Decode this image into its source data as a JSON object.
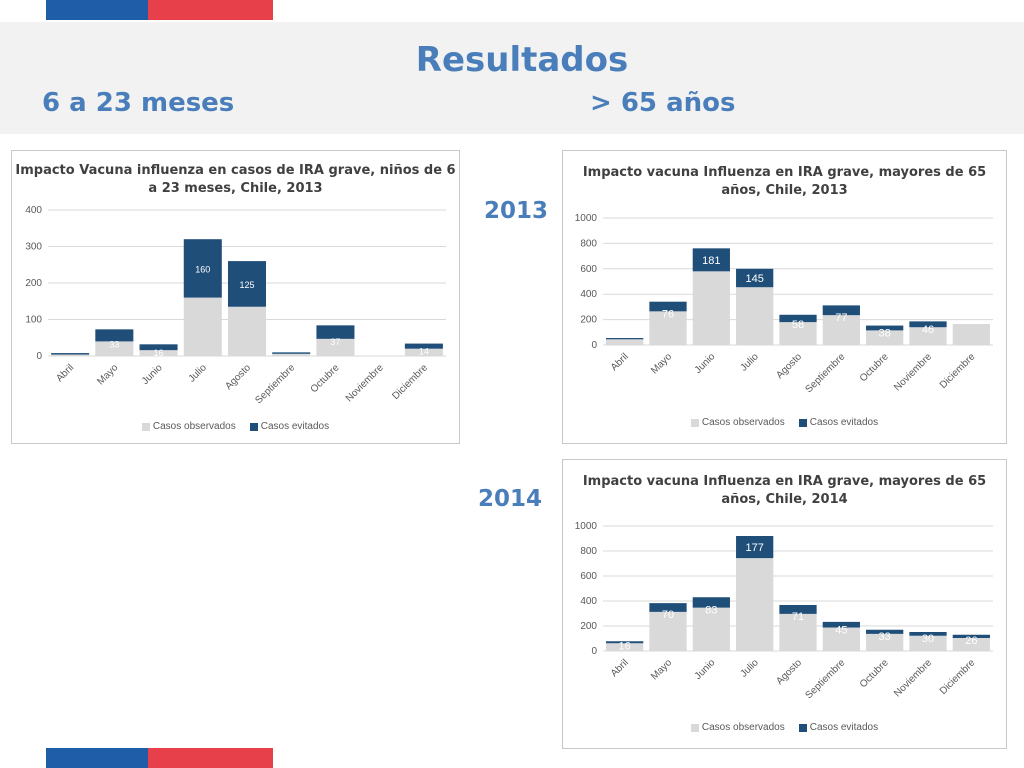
{
  "header": {
    "title": "Resultados",
    "left_subtitle": "6 a 23 meses",
    "right_subtitle": "> 65 años",
    "year_1": "2013",
    "year_2": "2014"
  },
  "colors": {
    "flag_blue": "#1f5da8",
    "flag_red": "#e8404a",
    "observed": "#d9d9d9",
    "avoided": "#1f4e79",
    "title_blue": "#4a7ebb"
  },
  "chart_data": [
    {
      "type": "bar",
      "stacked": true,
      "title": "Impacto Vacuna influenza en casos de IRA grave, niños de 6 a 23 meses, Chile, 2013",
      "title_lines": [
        "Impacto Vacuna influenza en casos de IRA grave, niños de 6",
        "a 23 meses, Chile, 2013"
      ],
      "categories": [
        "Abril",
        "Mayo",
        "Junio",
        "Julio",
        "Agosto",
        "Septiembre",
        "Octubre",
        "Noviembre",
        "Diciembre"
      ],
      "series": [
        {
          "name": "Casos observados",
          "values": [
            4,
            40,
            16,
            160,
            135,
            6,
            47,
            0,
            20
          ]
        },
        {
          "name": "Casos evitados",
          "values": [
            4,
            33,
            16,
            160,
            125,
            4,
            37,
            0,
            14
          ]
        }
      ],
      "data_labels": [
        "",
        "33",
        "16",
        "160",
        "125",
        "",
        "37",
        "",
        "14"
      ],
      "yticks": [
        0,
        100,
        200,
        300,
        400
      ],
      "ylim": [
        0,
        400
      ],
      "grid": true,
      "legend": "bottom"
    },
    {
      "type": "bar",
      "stacked": true,
      "title": "Impacto vacuna Influenza en IRA grave, mayores de 65 años, Chile, 2013",
      "title_lines": [
        "Impacto vacuna Influenza en IRA grave, mayores de 65",
        "años, Chile, 2013"
      ],
      "categories": [
        "Abril",
        "Mayo",
        "Junio",
        "Julio",
        "Agosto",
        "Septiembre",
        "Octubre",
        "Noviembre",
        "Diciembre"
      ],
      "series": [
        {
          "name": "Casos observados",
          "values": [
            45,
            265,
            580,
            455,
            180,
            235,
            115,
            140,
            165
          ]
        },
        {
          "name": "Casos evitados",
          "values": [
            10,
            76,
            181,
            145,
            58,
            77,
            38,
            46,
            0
          ]
        }
      ],
      "data_labels": [
        "",
        "76",
        "181",
        "145",
        "58",
        "77",
        "38",
        "46",
        ""
      ],
      "yticks": [
        0,
        200,
        400,
        600,
        800,
        1000
      ],
      "ylim": [
        0,
        1000
      ],
      "grid": true,
      "legend": "bottom"
    },
    {
      "type": "bar",
      "stacked": true,
      "title": "Impacto vacuna Influenza en IRA grave, mayores de 65 años, Chile, 2014",
      "title_lines": [
        "Impacto vacuna Influenza en IRA grave, mayores de  65",
        "años, Chile, 2014"
      ],
      "categories": [
        "Abril",
        "Mayo",
        "Junio",
        "Julio",
        "Agosto",
        "Septiembre",
        "Octubre",
        "Noviembre",
        "Diciembre"
      ],
      "series": [
        {
          "name": "Casos observados",
          "values": [
            62,
            313,
            347,
            743,
            297,
            188,
            137,
            122,
            104
          ]
        },
        {
          "name": "Casos evitados",
          "values": [
            16,
            70,
            83,
            177,
            71,
            45,
            33,
            30,
            26
          ]
        }
      ],
      "data_labels": [
        "16",
        "70",
        "83",
        "177",
        "71",
        "45",
        "33",
        "30",
        "26"
      ],
      "yticks": [
        0,
        200,
        400,
        600,
        800,
        1000
      ],
      "ylim": [
        0,
        1000
      ],
      "grid": true,
      "legend": "bottom"
    }
  ]
}
